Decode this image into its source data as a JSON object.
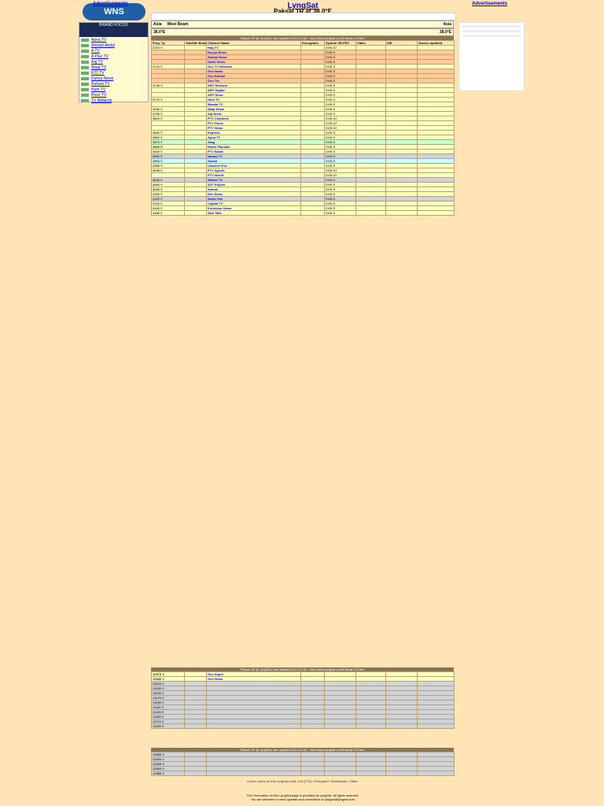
{
  "header": {
    "logo_text": "WNS",
    "left_link": "Advertisements",
    "right_link": "Advertisements",
    "site_title": "LyngSat",
    "satellite_title": "Paksat 1R at 38.0°E"
  },
  "sidebar": {
    "banner": "BRAND FOCUS",
    "items": [
      {
        "label": "Apna TV"
      },
      {
        "label": "Ahmad Abdul"
      },
      {
        "label": "A TV"
      },
      {
        "label": "A Plus TV"
      },
      {
        "label": "Aaj TV"
      },
      {
        "label": "Waqt TV"
      },
      {
        "label": "K21 TV"
      },
      {
        "label": "Dunya News"
      },
      {
        "label": "Ruhani TV"
      },
      {
        "label": "Hum TV"
      },
      {
        "label": "Roze TV"
      },
      {
        "label": "TV Network"
      }
    ]
  },
  "main": {
    "header_left": "Asia",
    "header_center": "West Beam",
    "header_right": "Asia",
    "sub_left": "38.0°E",
    "sub_right": "38.0°E",
    "bar_text": "Paksat 1R @ LyngSat, last updated 2013-04-08 - http://www.lyngsat.com/Paksat-1R.html",
    "columns": [
      "Freq. Tp",
      "Satellite Beam",
      "Channel Name",
      "Encryption",
      "System SR-FEC",
      "Video",
      "SID",
      "Source updated"
    ]
  },
  "rows": [
    {
      "freq": "3710 V",
      "name": "Haq TV",
      "sys": "DVB-S2",
      "style": "yellow"
    },
    {
      "freq": "",
      "name": "Dunya News",
      "sys": "DVB-S",
      "style": "orange"
    },
    {
      "freq": "",
      "name": "Samaa News",
      "sys": "DVB-S",
      "style": "orange"
    },
    {
      "freq": "",
      "name": "Dawn News",
      "sys": "DVB-S",
      "style": "orange"
    },
    {
      "freq": "3723 V",
      "name": "Geo TV Network",
      "sys": "DVB-S",
      "style": "yellow"
    },
    {
      "freq": "",
      "name": "Geo News",
      "sys": "DVB-S",
      "style": "orange"
    },
    {
      "freq": "",
      "name": "Geo Kahani",
      "sys": "DVB-S",
      "style": "orange"
    },
    {
      "freq": "",
      "name": "Geo Tez",
      "sys": "DVB-S",
      "style": "orange"
    },
    {
      "freq": "3745 V",
      "name": "ARY Network",
      "sys": "DVB-S",
      "style": "yellow"
    },
    {
      "freq": "",
      "name": "ARY Digital",
      "sys": "DVB-S",
      "style": "yellow"
    },
    {
      "freq": "",
      "name": "ARY News",
      "sys": "DVB-S",
      "style": "yellow"
    },
    {
      "freq": "3770 V",
      "name": "Hum TV",
      "sys": "DVB-S",
      "style": "yellow"
    },
    {
      "freq": "",
      "name": "Masala TV",
      "sys": "DVB-S",
      "style": "yellow"
    },
    {
      "freq": "3780 V",
      "name": "Waqt News",
      "sys": "DVB-S",
      "style": "yellow"
    },
    {
      "freq": "3796 V",
      "name": "Aaj News",
      "sys": "DVB-S",
      "style": "yellow"
    },
    {
      "freq": "3810 V",
      "name": "PTV Channels",
      "sys": "DVB-S2",
      "style": "yellow"
    },
    {
      "freq": "",
      "name": "PTV Home",
      "sys": "DVB-S2",
      "style": "yellow"
    },
    {
      "freq": "",
      "name": "PTV News",
      "sys": "DVB-S2",
      "style": "yellow"
    },
    {
      "freq": "3840 V",
      "name": "Express",
      "sys": "DVB-S",
      "style": "yellow"
    },
    {
      "freq": "3860 V",
      "name": "Apna TV",
      "sys": "DVB-S",
      "style": "yellow"
    },
    {
      "freq": "3870 V",
      "name": "Jaag",
      "sys": "DVB-S",
      "style": "green"
    },
    {
      "freq": "3885 H",
      "name": "Radio Pakistan",
      "sys": "DVB-S",
      "style": "yellow"
    },
    {
      "freq": "3920 V",
      "name": "PTV Bolan",
      "sys": "DVB-S",
      "style": "yellow"
    },
    {
      "freq": "3950 V",
      "name": "Nawaz TV",
      "sys": "DVB-S",
      "style": "gray"
    },
    {
      "freq": "3963 V",
      "name": "Sohail",
      "sys": "DVB-S",
      "style": "cyan"
    },
    {
      "freq": "3985 V",
      "name": "Channel Five",
      "sys": "DVB-S",
      "style": "yellow"
    },
    {
      "freq": "4005 V",
      "name": "PTV Sports",
      "sys": "DVB-S2",
      "style": "yellow"
    },
    {
      "freq": "",
      "name": "PTV World",
      "sys": "DVB-S2",
      "style": "yellow"
    },
    {
      "freq": "4040 V",
      "name": "Waseb TV",
      "sys": "DVB-S",
      "style": "gray"
    },
    {
      "freq": "4060 V",
      "name": "AVT Khyber",
      "sys": "DVB-S",
      "style": "yellow"
    },
    {
      "freq": "4083 V",
      "name": "Samaa",
      "sys": "DVB-S",
      "style": "yellow"
    },
    {
      "freq": "4100 V",
      "name": "Neo News",
      "sys": "DVB-S",
      "style": "yellow"
    },
    {
      "freq": "4120 V",
      "name": "News One",
      "sys": "DVB-S",
      "style": "gray"
    },
    {
      "freq": "4140 V",
      "name": "Capital TV",
      "sys": "DVB-S",
      "style": "yellow"
    },
    {
      "freq": "4160 V",
      "name": "Kohenoor News",
      "sys": "DVB-S",
      "style": "yellow"
    },
    {
      "freq": "4180 V",
      "name": "Abb Takk",
      "sys": "DVB-S",
      "style": "yellow"
    }
  ],
  "section2": {
    "bar_text": "Paksat 1R @ LyngSat, last updated 2013-04-08 - http://www.lyngsat.com/Paksat-1R.html",
    "rows": [
      {
        "freq": "10975 V",
        "name": "Geo Super",
        "style": "yellow"
      },
      {
        "freq": "10986 V",
        "name": "Geo News",
        "style": "yellow"
      },
      {
        "freq": "11010 V",
        "name": "",
        "style": "gray"
      },
      {
        "freq": "11030 V",
        "name": "",
        "style": "gray"
      },
      {
        "freq": "11050 V",
        "name": "",
        "style": "gray"
      },
      {
        "freq": "11070 V",
        "name": "",
        "style": "gray"
      },
      {
        "freq": "11090 V",
        "name": "",
        "style": "gray"
      },
      {
        "freq": "11110 V",
        "name": "",
        "style": "gray"
      },
      {
        "freq": "11130 V",
        "name": "",
        "style": "gray"
      },
      {
        "freq": "11150 V",
        "name": "",
        "style": "gray"
      },
      {
        "freq": "11170 V",
        "name": "",
        "style": "gray"
      },
      {
        "freq": "11190 V",
        "name": "",
        "style": "gray"
      }
    ]
  },
  "section3": {
    "bar_text": "Paksat 1R @ LyngSat, last updated 2013-04-08 - http://www.lyngsat.com/Paksat-1R.html",
    "rows": [
      {
        "freq": "12500 V",
        "name": "",
        "style": "gray"
      },
      {
        "freq": "12520 V",
        "name": "",
        "style": "gray"
      },
      {
        "freq": "12540 V",
        "name": "",
        "style": "gray"
      },
      {
        "freq": "12560 V",
        "name": "",
        "style": "gray"
      },
      {
        "freq": "12580 V",
        "name": "",
        "style": "gray"
      }
    ]
  },
  "footer": {
    "line1": "Colour codes on this LyngSat chart: C/N (FTA) / Encrypted / Multistream / Other",
    "line2": "The information on this LyngSat page is provided by LyngSat. All rights reserved.",
    "line3": "You are welcome to send updates and corrections to lyngsat@lyngsat.com"
  },
  "colors": {
    "page_bg": "#ffe4b5",
    "link": "#0000ff",
    "row_yellow": "#ffffc0",
    "row_orange": "#ffcc99",
    "row_gray": "#d3d3d3"
  }
}
